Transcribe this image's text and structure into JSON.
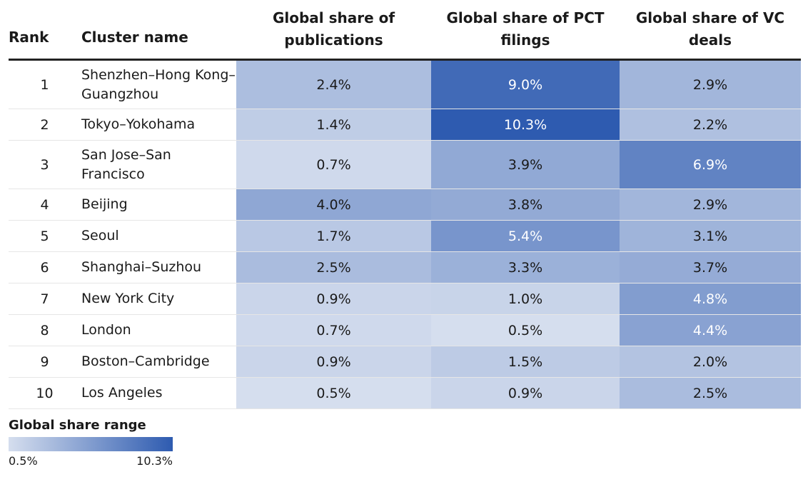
{
  "chart_data": {
    "type": "heatmap",
    "columns": [
      "Rank",
      "Cluster name",
      "Global share of publications",
      "Global share of PCT filings",
      "Global share of VC deals"
    ],
    "rows": [
      {
        "rank": "1",
        "cluster": "Shenzhen–Hong Kong–Guangzhou",
        "publications": 2.4,
        "pct": 9.0,
        "vc": 2.9
      },
      {
        "rank": "2",
        "cluster": "Tokyo–Yokohama",
        "publications": 1.4,
        "pct": 10.3,
        "vc": 2.2
      },
      {
        "rank": "3",
        "cluster": "San Jose–San Francisco",
        "publications": 0.7,
        "pct": 3.9,
        "vc": 6.9
      },
      {
        "rank": "4",
        "cluster": "Beijing",
        "publications": 4.0,
        "pct": 3.8,
        "vc": 2.9
      },
      {
        "rank": "5",
        "cluster": "Seoul",
        "publications": 1.7,
        "pct": 5.4,
        "vc": 3.1
      },
      {
        "rank": "6",
        "cluster": "Shanghai–Suzhou",
        "publications": 2.5,
        "pct": 3.3,
        "vc": 3.7
      },
      {
        "rank": "7",
        "cluster": "New York City",
        "publications": 0.9,
        "pct": 1.0,
        "vc": 4.8
      },
      {
        "rank": "8",
        "cluster": "London",
        "publications": 0.7,
        "pct": 0.5,
        "vc": 4.4
      },
      {
        "rank": "9",
        "cluster": "Boston–Cambridge",
        "publications": 0.9,
        "pct": 1.5,
        "vc": 2.0
      },
      {
        "rank": "10",
        "cluster": "Los Angeles",
        "publications": 0.5,
        "pct": 0.9,
        "vc": 2.5
      }
    ],
    "value_suffix": "%",
    "color_scale": {
      "min": 0.5,
      "max": 10.3,
      "min_color": "#d5deee",
      "max_color": "#2e5bb0"
    },
    "legend": {
      "title": "Global share range",
      "min_label": "0.5%",
      "max_label": "10.3%",
      "placement": "bottom-left"
    }
  }
}
